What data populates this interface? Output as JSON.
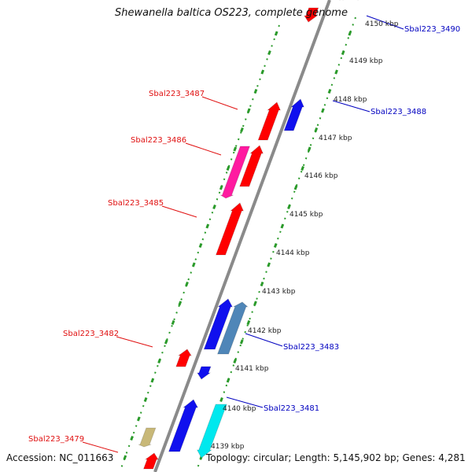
{
  "title": "Shewanella baltica OS223, complete genome",
  "accession": "Accession: NC_011663",
  "topology": "Topology: circular; Length: 5,145,902 bp; Genes: 4,281",
  "colors": {
    "backbone": "#8a8a8a",
    "ticks": "#2a9a2a",
    "forward_label": "#e01010",
    "reverse_label": "#0000c0",
    "red": "#ff0000",
    "blue": "#1010ee",
    "magenta": "#ff1aa0",
    "cyan": "#00e8ee",
    "steelblue": "#4f86b8",
    "tan": "#c8b878",
    "lavender": "#a9a9ff"
  },
  "scale_labels": [
    "4150 kbp",
    "4149 kbp",
    "4148 kbp",
    "4147 kbp",
    "4146 kbp",
    "4145 kbp",
    "4144 kbp",
    "4143 kbp",
    "4142 kbp",
    "4141 kbp",
    "4140 kbp",
    "4139 kbp"
  ],
  "left_labels": [
    "Sbal223_3487",
    "Sbal223_3486",
    "Sbal223_3485",
    "Sbal223_3482",
    "Sbal223_3479"
  ],
  "right_labels": [
    "Sbal223_3490",
    "Sbal223_3488",
    "Sbal223_3483",
    "Sbal223_3481"
  ]
}
